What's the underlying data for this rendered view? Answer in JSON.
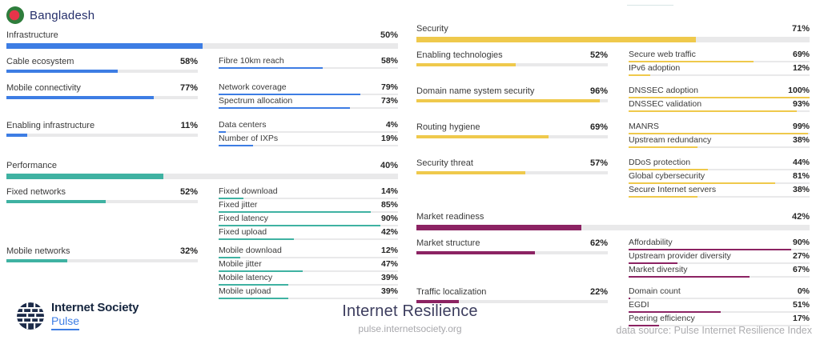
{
  "header": {
    "country": "Bangladesh",
    "flag_colors": {
      "green": "#2E7D3C",
      "red": "#E8344A"
    }
  },
  "sections": [
    {
      "label": "Infrastructure",
      "pct": "50%",
      "value": 50,
      "color": "#3D7DE4",
      "groups": [
        {
          "pillar": {
            "label": "Cable ecosystem",
            "pct": "58%",
            "value": 58
          },
          "metrics": [
            {
              "label": "Fibre 10km reach",
              "pct": "58%",
              "value": 58
            }
          ]
        },
        {
          "pillar": {
            "label": "Mobile connectivity",
            "pct": "77%",
            "value": 77
          },
          "metrics": [
            {
              "label": "Network coverage",
              "pct": "79%",
              "value": 79
            },
            {
              "label": "Spectrum allocation",
              "pct": "73%",
              "value": 73
            }
          ]
        },
        {
          "pillar": {
            "label": "Enabling infrastructure",
            "pct": "11%",
            "value": 11
          },
          "metrics": [
            {
              "label": "Data centers",
              "pct": "4%",
              "value": 4
            },
            {
              "label": "Number of IXPs",
              "pct": "19%",
              "value": 19
            }
          ]
        }
      ]
    },
    {
      "label": "Performance",
      "pct": "40%",
      "value": 40,
      "color": "#3FB2A2",
      "groups": [
        {
          "pillar": {
            "label": "Fixed networks",
            "pct": "52%",
            "value": 52
          },
          "metrics": [
            {
              "label": "Fixed download",
              "pct": "14%",
              "value": 14
            },
            {
              "label": "Fixed jitter",
              "pct": "85%",
              "value": 85
            },
            {
              "label": "Fixed latency",
              "pct": "90%",
              "value": 90
            },
            {
              "label": "Fixed upload",
              "pct": "42%",
              "value": 42
            }
          ]
        },
        {
          "pillar": {
            "label": "Mobile networks",
            "pct": "32%",
            "value": 32
          },
          "metrics": [
            {
              "label": "Mobile download",
              "pct": "12%",
              "value": 12
            },
            {
              "label": "Mobile jitter",
              "pct": "47%",
              "value": 47
            },
            {
              "label": "Mobile latency",
              "pct": "39%",
              "value": 39
            },
            {
              "label": "Mobile upload",
              "pct": "39%",
              "value": 39
            }
          ]
        }
      ]
    },
    {
      "label": "Security",
      "pct": "71%",
      "value": 71,
      "color": "#EFC94C",
      "groups": [
        {
          "pillar": {
            "label": "Enabling technologies",
            "pct": "52%",
            "value": 52
          },
          "metrics": [
            {
              "label": "Secure web traffic",
              "pct": "69%",
              "value": 69
            },
            {
              "label": "IPv6 adoption",
              "pct": "12%",
              "value": 12
            }
          ]
        },
        {
          "pillar": {
            "label": "Domain name system security",
            "pct": "96%",
            "value": 96
          },
          "metrics": [
            {
              "label": "DNSSEC adoption",
              "pct": "100%",
              "value": 100
            },
            {
              "label": "DNSSEC validation",
              "pct": "93%",
              "value": 93
            }
          ]
        },
        {
          "pillar": {
            "label": "Routing hygiene",
            "pct": "69%",
            "value": 69
          },
          "metrics": [
            {
              "label": "MANRS",
              "pct": "99%",
              "value": 99
            },
            {
              "label": "Upstream redundancy",
              "pct": "38%",
              "value": 38
            }
          ]
        },
        {
          "pillar": {
            "label": "Security threat",
            "pct": "57%",
            "value": 57
          },
          "metrics": [
            {
              "label": "DDoS protection",
              "pct": "44%",
              "value": 44
            },
            {
              "label": "Global cybersecurity",
              "pct": "81%",
              "value": 81
            },
            {
              "label": "Secure Internet servers",
              "pct": "38%",
              "value": 38
            }
          ]
        }
      ]
    },
    {
      "label": "Market readiness",
      "pct": "42%",
      "value": 42,
      "color": "#8C2363",
      "groups": [
        {
          "pillar": {
            "label": "Market structure",
            "pct": "62%",
            "value": 62
          },
          "metrics": [
            {
              "label": "Affordability",
              "pct": "90%",
              "value": 90
            },
            {
              "label": "Upstream provider diversity",
              "pct": "27%",
              "value": 27
            },
            {
              "label": "Market diversity",
              "pct": "67%",
              "value": 67
            }
          ]
        },
        {
          "pillar": {
            "label": "Traffic localization",
            "pct": "22%",
            "value": 22
          },
          "metrics": [
            {
              "label": "Domain count",
              "pct": "0%",
              "value": 0
            },
            {
              "label": "EGDI",
              "pct": "51%",
              "value": 51
            },
            {
              "label": "Peering efficiency",
              "pct": "17%",
              "value": 17
            }
          ]
        }
      ]
    }
  ],
  "footer": {
    "brand_name": "Internet Society",
    "brand_sub": "Pulse",
    "title": "Internet Resilience",
    "url": "pulse.internetsociety.org",
    "source": "data source: Pulse Internet Resilience Index"
  },
  "chart_data": [
    {
      "type": "bar",
      "title": "Infrastructure",
      "overall_value": 50,
      "unit": "%",
      "color": "#3D7DE4",
      "categories": [
        "Cable ecosystem",
        "Fibre 10km reach",
        "Mobile connectivity",
        "Network coverage",
        "Spectrum allocation",
        "Enabling infrastructure",
        "Data centers",
        "Number of IXPs"
      ],
      "values": [
        58,
        58,
        77,
        79,
        73,
        11,
        4,
        19
      ],
      "xlim": [
        0,
        100
      ]
    },
    {
      "type": "bar",
      "title": "Performance",
      "overall_value": 40,
      "unit": "%",
      "color": "#3FB2A2",
      "categories": [
        "Fixed networks",
        "Fixed download",
        "Fixed jitter",
        "Fixed latency",
        "Fixed upload",
        "Mobile networks",
        "Mobile download",
        "Mobile jitter",
        "Mobile latency",
        "Mobile upload"
      ],
      "values": [
        52,
        14,
        85,
        90,
        42,
        32,
        12,
        47,
        39,
        39
      ],
      "xlim": [
        0,
        100
      ]
    },
    {
      "type": "bar",
      "title": "Security",
      "overall_value": 71,
      "unit": "%",
      "color": "#EFC94C",
      "categories": [
        "Enabling technologies",
        "Secure web traffic",
        "IPv6 adoption",
        "Domain name system security",
        "DNSSEC adoption",
        "DNSSEC validation",
        "Routing hygiene",
        "MANRS",
        "Upstream redundancy",
        "Security threat",
        "DDoS protection",
        "Global cybersecurity",
        "Secure Internet servers"
      ],
      "values": [
        52,
        69,
        12,
        96,
        100,
        93,
        69,
        99,
        38,
        57,
        44,
        81,
        38
      ],
      "xlim": [
        0,
        100
      ]
    },
    {
      "type": "bar",
      "title": "Market readiness",
      "overall_value": 42,
      "unit": "%",
      "color": "#8C2363",
      "categories": [
        "Market structure",
        "Affordability",
        "Upstream provider diversity",
        "Market diversity",
        "Traffic localization",
        "Domain count",
        "EGDI",
        "Peering efficiency"
      ],
      "values": [
        62,
        90,
        27,
        67,
        22,
        0,
        51,
        17
      ],
      "xlim": [
        0,
        100
      ]
    }
  ]
}
